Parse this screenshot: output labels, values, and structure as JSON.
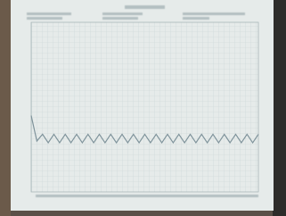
{
  "chart_data": {
    "type": "line",
    "x": [
      0,
      2.5,
      5,
      7.5,
      10,
      12.5,
      15,
      17.5,
      20,
      22.5,
      25,
      27.5,
      30,
      32.5,
      35,
      37.5,
      40,
      42.5,
      45,
      47.5,
      50,
      52.5,
      55,
      57.5,
      60,
      62.5,
      65,
      67.5,
      70,
      72.5,
      75,
      77.5,
      80,
      82.5,
      85,
      87.5,
      90,
      92.5,
      95,
      97.5,
      100
    ],
    "series": [
      {
        "color": "#7f939b",
        "values": [
          45,
          30,
          34,
          29,
          34,
          29,
          34,
          29,
          34,
          29,
          34,
          29,
          34,
          29,
          34,
          29,
          34,
          29,
          34,
          29,
          34,
          29,
          34,
          29,
          34,
          29,
          34,
          29,
          34,
          29,
          34,
          29,
          34,
          29,
          34,
          29,
          34,
          29,
          34,
          29,
          34
        ]
      }
    ],
    "xlim": [
      0,
      100
    ],
    "ylim": [
      0,
      100
    ],
    "grid": true
  }
}
